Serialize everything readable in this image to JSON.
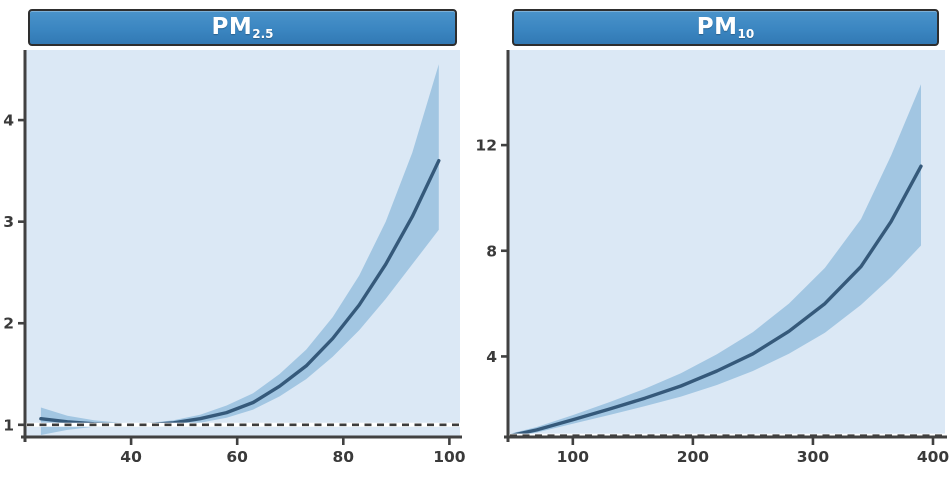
{
  "figure": {
    "background": "#ffffff",
    "axis_color": "#414141",
    "tick_label_color": "#3a3a3a"
  },
  "chart_data": [
    {
      "type": "line",
      "title_main": "PM",
      "title_sub": "2.5",
      "header_color": "#3b86c1",
      "header_border_color": "#2e2e2e",
      "plot_bg": "#dbe8f5",
      "band_color": "#a2c6e2",
      "line_color": "#35597a",
      "ref_line": {
        "y": 1,
        "style": "dashed",
        "color": "#3c3c3c",
        "underlay": "#ffffff"
      },
      "xlim": [
        20,
        102
      ],
      "ylim": [
        0.88,
        4.69
      ],
      "xticks": [
        40,
        60,
        80,
        100
      ],
      "yticks": [
        1,
        2,
        3,
        4
      ],
      "grid": false,
      "legend": null,
      "series": [
        {
          "name": "fit",
          "x": [
            23,
            28,
            33,
            38,
            43,
            48,
            53,
            58,
            63,
            68,
            73,
            78,
            83,
            88,
            93,
            98
          ],
          "y": [
            1.06,
            1.03,
            1.01,
            1.0,
            1.0,
            1.02,
            1.06,
            1.12,
            1.22,
            1.38,
            1.58,
            1.85,
            2.18,
            2.58,
            3.05,
            3.6
          ]
        },
        {
          "name": "ci_lower",
          "x": [
            23,
            28,
            33,
            38,
            43,
            48,
            53,
            58,
            63,
            68,
            73,
            78,
            83,
            88,
            93,
            98
          ],
          "y": [
            0.9,
            0.95,
            0.98,
            0.985,
            0.99,
            1.0,
            1.02,
            1.07,
            1.15,
            1.28,
            1.45,
            1.67,
            1.93,
            2.24,
            2.58,
            2.92
          ]
        },
        {
          "name": "ci_upper",
          "x": [
            23,
            28,
            33,
            38,
            43,
            48,
            53,
            58,
            63,
            68,
            73,
            78,
            83,
            88,
            93,
            98
          ],
          "y": [
            1.17,
            1.09,
            1.045,
            1.02,
            1.015,
            1.045,
            1.1,
            1.19,
            1.31,
            1.5,
            1.74,
            2.06,
            2.47,
            3.0,
            3.68,
            4.55
          ]
        }
      ]
    },
    {
      "type": "line",
      "title_main": "PM",
      "title_sub": "10",
      "header_color": "#3b86c1",
      "header_border_color": "#2e2e2e",
      "plot_bg": "#dbe8f5",
      "band_color": "#a2c6e2",
      "line_color": "#35597a",
      "ref_line": {
        "y": 1,
        "style": "dashed",
        "color": "#3c3c3c",
        "underlay": "#ffffff"
      },
      "xlim": [
        46,
        410
      ],
      "ylim": [
        0.95,
        15.6
      ],
      "xticks": [
        100,
        200,
        300,
        400
      ],
      "yticks": [
        4,
        8,
        12
      ],
      "grid": false,
      "legend": null,
      "series": [
        {
          "name": "fit",
          "x": [
            48,
            70,
            100,
            130,
            160,
            190,
            220,
            250,
            280,
            310,
            340,
            365,
            390
          ],
          "y": [
            1.0,
            1.22,
            1.6,
            2.0,
            2.42,
            2.88,
            3.45,
            4.1,
            4.95,
            6.0,
            7.4,
            9.1,
            11.2
          ]
        },
        {
          "name": "ci_lower",
          "x": [
            48,
            70,
            100,
            130,
            160,
            190,
            220,
            250,
            280,
            310,
            340,
            365,
            390
          ],
          "y": [
            0.93,
            1.12,
            1.45,
            1.78,
            2.12,
            2.48,
            2.92,
            3.45,
            4.1,
            4.9,
            5.95,
            7.0,
            8.2
          ]
        },
        {
          "name": "ci_upper",
          "x": [
            48,
            70,
            100,
            130,
            160,
            190,
            220,
            250,
            280,
            310,
            340,
            365,
            390
          ],
          "y": [
            1.08,
            1.33,
            1.78,
            2.26,
            2.78,
            3.36,
            4.08,
            4.92,
            6.0,
            7.35,
            9.2,
            11.6,
            14.3
          ]
        }
      ]
    }
  ]
}
